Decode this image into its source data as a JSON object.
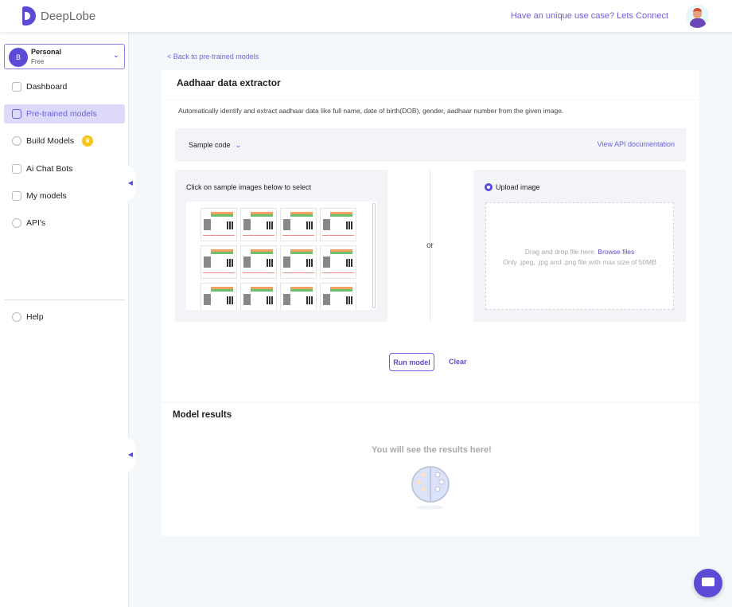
{
  "header": {
    "brand": "DeepLobe",
    "connect_link": "Have an unique use case? Lets Connect"
  },
  "account": {
    "initial": "B",
    "name": "Personal",
    "plan": "Free"
  },
  "sidebar": {
    "items": [
      {
        "label": "Dashboard",
        "icon": "grid-icon"
      },
      {
        "label": "Pre-trained models",
        "icon": "models-icon",
        "active": true
      },
      {
        "label": "Build Models",
        "icon": "plus-circle-icon",
        "badge": "crown-icon"
      },
      {
        "label": "Ai Chat Bots",
        "icon": "robot-icon"
      },
      {
        "label": "My models",
        "icon": "layers-icon"
      },
      {
        "label": "API's",
        "icon": "api-gear-icon"
      }
    ],
    "help": "Help"
  },
  "main": {
    "back_link": "< Back to pre-trained models",
    "title": "Aadhaar data extractor",
    "description": "Automatically identify and extract aadhaar data like full name, date of birth(DOB), gender, aadhaar number from the given image.",
    "sample_code": "Sample code",
    "api_docs": "View API documentation",
    "samples_label": "Click on sample images below to select",
    "or": "or",
    "upload_label": "Upload image",
    "drop_text": "Drag and drop file here.",
    "browse": "Browse files",
    "drop_hint": "Only .jpeg, .jpg and .png file with max size of 50MB",
    "run": "Run model",
    "clear": "Clear",
    "results_title": "Model results",
    "results_empty": "You will see the results here!"
  },
  "colors": {
    "accent": "#5b4bd6",
    "link": "#6f5fe0",
    "background": "#f5f8fb"
  }
}
